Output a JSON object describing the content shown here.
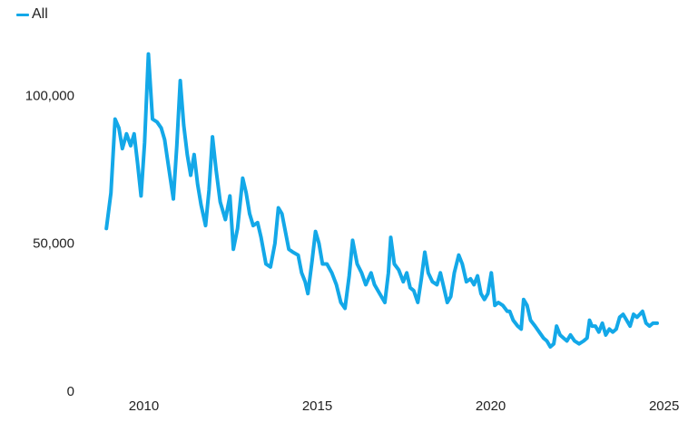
{
  "colors": {
    "series": "#13a8e8",
    "text": "#222222"
  },
  "chart_data": {
    "type": "line",
    "title": "",
    "xlabel": "",
    "ylabel": "",
    "xlim": [
      2008.6,
      2025.35
    ],
    "ylim": [
      0,
      120000
    ],
    "grid": false,
    "legend": "top-left",
    "x_ticks": [
      2010,
      2015,
      2020,
      2025
    ],
    "x_tick_labels": [
      "2010",
      "2015",
      "2020",
      "2025"
    ],
    "y_ticks": [
      0,
      50000,
      100000
    ],
    "y_tick_labels": [
      "0",
      "50,000",
      "100,000"
    ],
    "series": [
      {
        "name": "All",
        "points": [
          [
            2008.92,
            55000
          ],
          [
            2009.05,
            67000
          ],
          [
            2009.17,
            92000
          ],
          [
            2009.28,
            89000
          ],
          [
            2009.38,
            82000
          ],
          [
            2009.5,
            87000
          ],
          [
            2009.62,
            83000
          ],
          [
            2009.72,
            87000
          ],
          [
            2009.82,
            77000
          ],
          [
            2009.92,
            66000
          ],
          [
            2010.02,
            84000
          ],
          [
            2010.13,
            114000
          ],
          [
            2010.25,
            92000
          ],
          [
            2010.38,
            91000
          ],
          [
            2010.5,
            89000
          ],
          [
            2010.6,
            85000
          ],
          [
            2010.7,
            77000
          ],
          [
            2010.85,
            65000
          ],
          [
            2010.95,
            83000
          ],
          [
            2011.05,
            105000
          ],
          [
            2011.15,
            90000
          ],
          [
            2011.25,
            80000
          ],
          [
            2011.35,
            73000
          ],
          [
            2011.45,
            80000
          ],
          [
            2011.55,
            70000
          ],
          [
            2011.65,
            63000
          ],
          [
            2011.78,
            56000
          ],
          [
            2011.88,
            68000
          ],
          [
            2011.98,
            86000
          ],
          [
            2012.08,
            75000
          ],
          [
            2012.2,
            64000
          ],
          [
            2012.35,
            58000
          ],
          [
            2012.48,
            66000
          ],
          [
            2012.58,
            48000
          ],
          [
            2012.7,
            55000
          ],
          [
            2012.85,
            72000
          ],
          [
            2012.95,
            67000
          ],
          [
            2013.05,
            60000
          ],
          [
            2013.15,
            56000
          ],
          [
            2013.28,
            57000
          ],
          [
            2013.38,
            52000
          ],
          [
            2013.52,
            43000
          ],
          [
            2013.65,
            42000
          ],
          [
            2013.78,
            50000
          ],
          [
            2013.88,
            62000
          ],
          [
            2013.98,
            60000
          ],
          [
            2014.08,
            54000
          ],
          [
            2014.18,
            48000
          ],
          [
            2014.3,
            47000
          ],
          [
            2014.45,
            46000
          ],
          [
            2014.55,
            40000
          ],
          [
            2014.65,
            37000
          ],
          [
            2014.73,
            33000
          ],
          [
            2014.85,
            44000
          ],
          [
            2014.95,
            54000
          ],
          [
            2015.05,
            50000
          ],
          [
            2015.15,
            43000
          ],
          [
            2015.28,
            43000
          ],
          [
            2015.42,
            40000
          ],
          [
            2015.55,
            36000
          ],
          [
            2015.68,
            30000
          ],
          [
            2015.8,
            28000
          ],
          [
            2015.92,
            39000
          ],
          [
            2016.02,
            51000
          ],
          [
            2016.15,
            43000
          ],
          [
            2016.28,
            40000
          ],
          [
            2016.4,
            36000
          ],
          [
            2016.55,
            40000
          ],
          [
            2016.65,
            36000
          ],
          [
            2016.8,
            33000
          ],
          [
            2016.95,
            30000
          ],
          [
            2017.05,
            40000
          ],
          [
            2017.12,
            52000
          ],
          [
            2017.22,
            43000
          ],
          [
            2017.35,
            41000
          ],
          [
            2017.48,
            37000
          ],
          [
            2017.58,
            40000
          ],
          [
            2017.68,
            35000
          ],
          [
            2017.78,
            34000
          ],
          [
            2017.9,
            30000
          ],
          [
            2018.0,
            38000
          ],
          [
            2018.1,
            47000
          ],
          [
            2018.2,
            40000
          ],
          [
            2018.32,
            37000
          ],
          [
            2018.45,
            36000
          ],
          [
            2018.55,
            40000
          ],
          [
            2018.65,
            35000
          ],
          [
            2018.75,
            30000
          ],
          [
            2018.85,
            32000
          ],
          [
            2018.95,
            40000
          ],
          [
            2019.08,
            46000
          ],
          [
            2019.18,
            43000
          ],
          [
            2019.3,
            37000
          ],
          [
            2019.42,
            38000
          ],
          [
            2019.52,
            36000
          ],
          [
            2019.62,
            39000
          ],
          [
            2019.72,
            33000
          ],
          [
            2019.82,
            31000
          ],
          [
            2019.92,
            33000
          ],
          [
            2020.02,
            40000
          ],
          [
            2020.12,
            29000
          ],
          [
            2020.22,
            30000
          ],
          [
            2020.35,
            29000
          ],
          [
            2020.48,
            27000
          ],
          [
            2020.55,
            27000
          ],
          [
            2020.65,
            24000
          ],
          [
            2020.78,
            22000
          ],
          [
            2020.88,
            21000
          ],
          [
            2020.95,
            31000
          ],
          [
            2021.05,
            29000
          ],
          [
            2021.15,
            24000
          ],
          [
            2021.28,
            22000
          ],
          [
            2021.4,
            20000
          ],
          [
            2021.52,
            18000
          ],
          [
            2021.62,
            17000
          ],
          [
            2021.72,
            15000
          ],
          [
            2021.82,
            16000
          ],
          [
            2021.9,
            22000
          ],
          [
            2022.0,
            19000
          ],
          [
            2022.1,
            18000
          ],
          [
            2022.2,
            17000
          ],
          [
            2022.3,
            19000
          ],
          [
            2022.42,
            17000
          ],
          [
            2022.55,
            16000
          ],
          [
            2022.68,
            17000
          ],
          [
            2022.78,
            18000
          ],
          [
            2022.85,
            24000
          ],
          [
            2022.92,
            22000
          ],
          [
            2023.02,
            22000
          ],
          [
            2023.12,
            20000
          ],
          [
            2023.22,
            23000
          ],
          [
            2023.32,
            19000
          ],
          [
            2023.42,
            21000
          ],
          [
            2023.52,
            20000
          ],
          [
            2023.62,
            21000
          ],
          [
            2023.72,
            25000
          ],
          [
            2023.82,
            26000
          ],
          [
            2023.92,
            24000
          ],
          [
            2024.02,
            22000
          ],
          [
            2024.12,
            26000
          ],
          [
            2024.22,
            25000
          ],
          [
            2024.3,
            26000
          ],
          [
            2024.38,
            27000
          ],
          [
            2024.48,
            23000
          ],
          [
            2024.58,
            22000
          ],
          [
            2024.68,
            23000
          ],
          [
            2024.8,
            23000
          ]
        ]
      }
    ]
  }
}
